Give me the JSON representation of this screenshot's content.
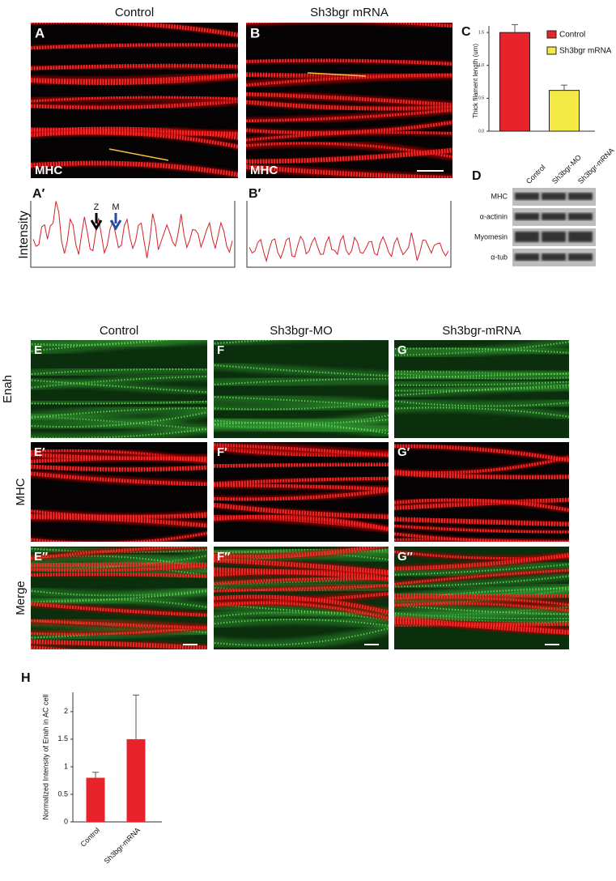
{
  "top_headings": [
    "Control",
    "Sh3bgr mRNA"
  ],
  "top_panels": [
    {
      "letter": "A",
      "stain": "MHC"
    },
    {
      "letter": "B",
      "stain": "MHC"
    }
  ],
  "profiles": {
    "letters": [
      "A′",
      "B′"
    ],
    "ylabel": "Intensity",
    "arrows": [
      "Z",
      "M"
    ]
  },
  "chart_c": {
    "type": "bar",
    "letter": "C",
    "ylabel": "Thick filament length (um)",
    "categories": [
      "Control",
      "Sh3bgr mRNA"
    ],
    "values": [
      1.5,
      0.62
    ],
    "errors": [
      0.12,
      0.08
    ],
    "colors": [
      "#e8232b",
      "#f4ea45"
    ],
    "ylim": [
      0,
      1.6
    ],
    "yticks": [
      {
        "value": 0,
        "label": "0.0"
      },
      {
        "value": 0.5,
        "label": "0.5"
      },
      {
        "value": 1,
        "label": "1.0"
      },
      {
        "value": 1.5,
        "label": "1.5"
      }
    ]
  },
  "blot": {
    "letter": "D",
    "columns": [
      "Control",
      "Sh3bgr-MO",
      "Sh3bgr-mRNA"
    ],
    "rows": [
      "MHC",
      "α-actinin",
      "Myomesin",
      "α-tub"
    ]
  },
  "grid": {
    "columns": [
      "Control",
      "Sh3bgr-MO",
      "Sh3bgr-mRNA"
    ],
    "rows": [
      "Enah",
      "MHC",
      "Merge"
    ],
    "letters": [
      [
        "E",
        "F",
        "G"
      ],
      [
        "E′",
        "F′",
        "G′"
      ],
      [
        "E″",
        "F″",
        "G″"
      ]
    ]
  },
  "chart_h": {
    "type": "bar",
    "letter": "H",
    "ylabel": "Normalized Intensity of Enah  in AC cell",
    "categories": [
      "Control",
      "Sh3bgr-mRNA"
    ],
    "values": [
      0.8,
      1.5
    ],
    "errors": [
      0.1,
      0.8
    ],
    "color": "#e8232b",
    "ylim": [
      0,
      2.35
    ],
    "yticks": [
      0,
      0.5,
      1,
      1.5,
      2
    ]
  }
}
